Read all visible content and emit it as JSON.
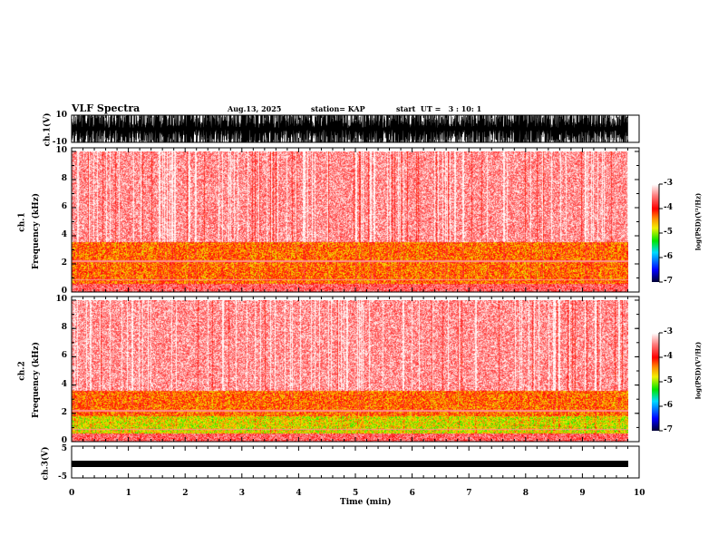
{
  "header": {
    "title": "VLF Spectra",
    "date": "Aug.13, 2025",
    "station": "station= KAP",
    "start": "start  UT =   3 : 10: 1"
  },
  "chart_data": [
    {
      "type": "line",
      "name": "ch1-waveform",
      "ylabel": "ch.1(V)",
      "ylim": [
        -10,
        10
      ],
      "yticks": [
        "10",
        "-10"
      ],
      "xlim": [
        0,
        10
      ]
    },
    {
      "type": "heatmap",
      "name": "ch1-spectrogram",
      "ylabel": "ch.1\nFrequency (kHz)",
      "ylabel_top": "ch.1",
      "ylabel_bottom": "Frequency  (kHz)",
      "ylim": [
        0,
        10
      ],
      "yticks": [
        "0",
        "2",
        "4",
        "6",
        "8",
        "10"
      ],
      "xlim": [
        0,
        10
      ],
      "colorbar": {
        "label": "log(PSD)(V²/Hz)",
        "range": [
          -7,
          -3
        ],
        "ticks": [
          "-3",
          "-4",
          "-5",
          "-6",
          "-7"
        ]
      }
    },
    {
      "type": "heatmap",
      "name": "ch2-spectrogram",
      "ylabel_top": "ch.2",
      "ylabel_bottom": "Frequency  (kHz)",
      "ylim": [
        0,
        10
      ],
      "yticks": [
        "0",
        "2",
        "4",
        "6",
        "8",
        "10"
      ],
      "xlim": [
        0,
        10
      ],
      "colorbar": {
        "label": "log(PSD)(V²/Hz)",
        "range": [
          -7,
          -3
        ],
        "ticks": [
          "-3",
          "-4",
          "-5",
          "-6",
          "-7"
        ]
      }
    },
    {
      "type": "line",
      "name": "ch3-waveform",
      "ylabel": "ch.3(V)",
      "ylim": [
        -5,
        5
      ],
      "yticks": [
        "5",
        "-5"
      ],
      "xlim": [
        0,
        10
      ],
      "xlabel": "Time  (min)",
      "xticks": [
        "0",
        "1",
        "2",
        "3",
        "4",
        "5",
        "6",
        "7",
        "8",
        "9",
        "10"
      ]
    }
  ]
}
